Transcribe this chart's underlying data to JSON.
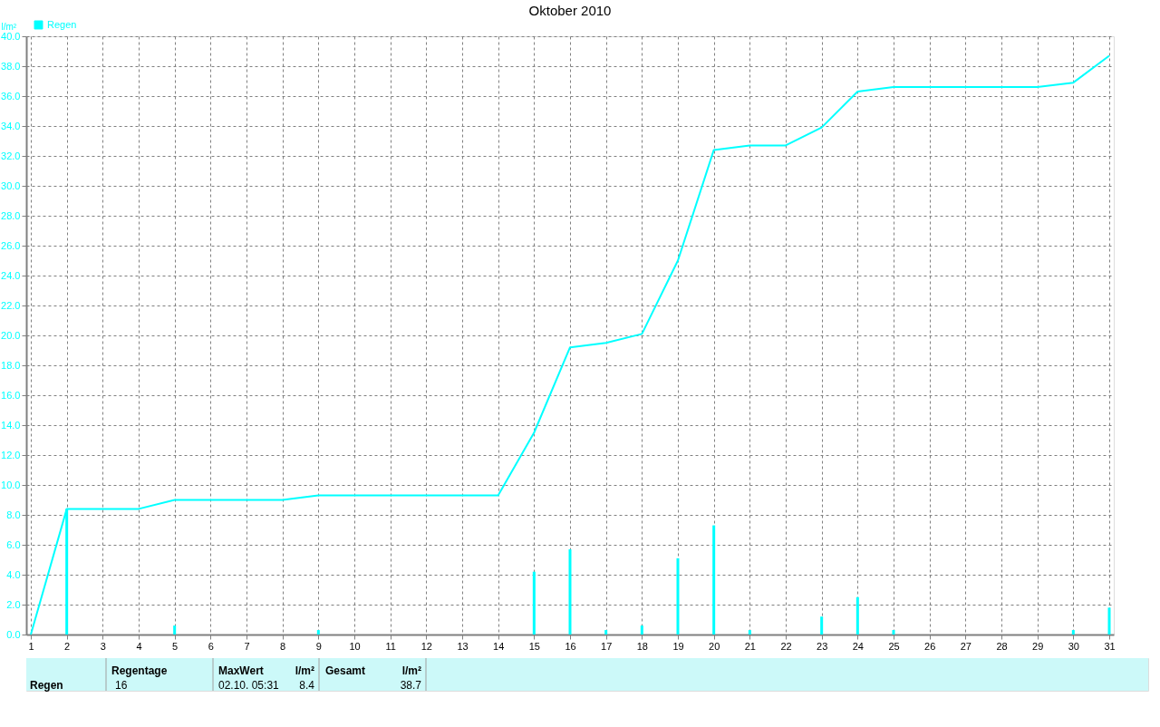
{
  "chart_data": {
    "type": "line",
    "title": "Oktober 2010",
    "ylabel": "l/m²",
    "x": [
      1,
      2,
      3,
      4,
      5,
      6,
      7,
      8,
      9,
      10,
      11,
      12,
      13,
      14,
      15,
      16,
      17,
      18,
      19,
      20,
      21,
      22,
      23,
      24,
      25,
      26,
      27,
      28,
      29,
      30,
      31
    ],
    "series": [
      {
        "name": "Regen",
        "color": "#00ffff",
        "values": [
          0,
          8.4,
          8.4,
          8.4,
          9.0,
          9.0,
          9.0,
          9.0,
          9.3,
          9.3,
          9.3,
          9.3,
          9.3,
          9.3,
          13.5,
          19.2,
          19.5,
          20.1,
          25.0,
          32.4,
          32.7,
          32.7,
          33.9,
          36.3,
          36.6,
          36.6,
          36.6,
          36.6,
          36.6,
          36.9,
          38.7
        ]
      },
      {
        "type": "bar",
        "color": "#00ffff",
        "values": [
          0,
          8.4,
          0,
          0,
          0.6,
          0,
          0,
          0,
          0.3,
          0,
          0,
          0,
          0,
          0,
          4.2,
          5.7,
          0.3,
          0.6,
          5.1,
          7.3,
          0.3,
          0,
          1.2,
          2.5,
          0.3,
          0,
          0,
          0,
          0,
          0.3,
          1.8
        ]
      }
    ],
    "xlim": [
      1,
      31
    ],
    "xticks": [
      1,
      2,
      3,
      4,
      5,
      6,
      7,
      8,
      9,
      10,
      11,
      12,
      13,
      14,
      15,
      16,
      17,
      18,
      19,
      20,
      21,
      22,
      23,
      24,
      25,
      26,
      27,
      28,
      29,
      30,
      31
    ],
    "ylim": [
      0,
      40
    ],
    "yticks": [
      {
        "value": 0,
        "label": "0.0"
      },
      {
        "value": 2,
        "label": "2.0"
      },
      {
        "value": 4,
        "label": "4.0"
      },
      {
        "value": 6,
        "label": "6.0"
      },
      {
        "value": 8,
        "label": "8.0"
      },
      {
        "value": 10,
        "label": "10.0"
      },
      {
        "value": 12,
        "label": "12.0"
      },
      {
        "value": 14,
        "label": "14.0"
      },
      {
        "value": 16,
        "label": "16.0"
      },
      {
        "value": 18,
        "label": "18.0"
      },
      {
        "value": 20,
        "label": "20.0"
      },
      {
        "value": 22,
        "label": "22.0"
      },
      {
        "value": 24,
        "label": "24.0"
      },
      {
        "value": 26,
        "label": "26.0"
      },
      {
        "value": 28,
        "label": "28.0"
      },
      {
        "value": 30,
        "label": "30.0"
      },
      {
        "value": 32,
        "label": "32.0"
      },
      {
        "value": 34,
        "label": "34.0"
      },
      {
        "value": 36,
        "label": "36.0"
      },
      {
        "value": 38,
        "label": "38.0"
      },
      {
        "value": 40,
        "label": "40.0"
      }
    ],
    "grid": true,
    "legend": "top left",
    "annotations": [
      "Regen",
      "Regentage",
      "16",
      "MaxWert",
      "02.10.  05:31",
      "l/m²",
      "8.4",
      "Gesamt",
      "l/m²",
      "38.7"
    ]
  }
}
